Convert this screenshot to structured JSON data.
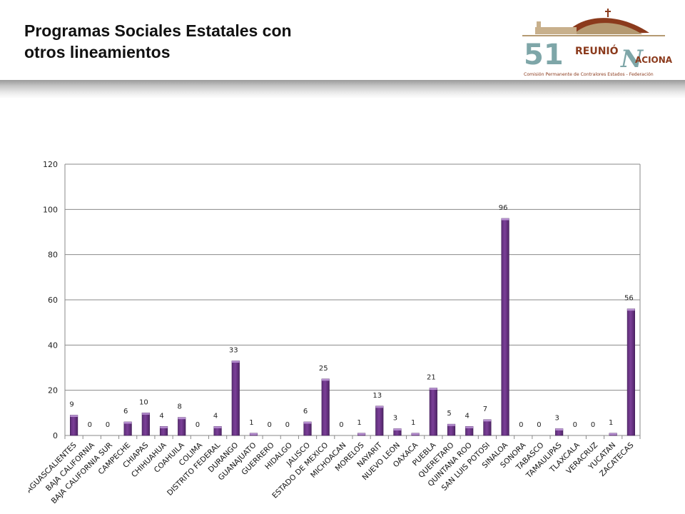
{
  "slide": {
    "title_line1": "Programas Sociales Estatales con",
    "title_line2": "otros lineamientos"
  },
  "logo": {
    "number": "51",
    "word1": "REUNIÓ",
    "word2_initial": "N",
    "word2_rest": "ACIONAL",
    "subtitle": "Comisión Permanente de Contralores Estados - Federación",
    "colors": {
      "teal": "#7ea6a8",
      "brown": "#8b3a1c",
      "sand": "#b59a72"
    }
  },
  "chart_data": {
    "type": "bar",
    "title": "",
    "xlabel": "",
    "ylabel": "",
    "ylim": [
      0,
      120
    ],
    "yticks": [
      0,
      20,
      40,
      60,
      80,
      100,
      120
    ],
    "grid": true,
    "bar_color": "#7b3f98",
    "categories": [
      "AGUASCALIENTES",
      "BAJA CALIFORNIA",
      "BAJA CALIFORNIA SUR",
      "CAMPECHE",
      "CHIAPAS",
      "CHIHUAHUA",
      "COAHUILA",
      "COLIMA",
      "DISTRITO FEDERAL",
      "DURANGO",
      "GUANAJUATO",
      "GUERRERO",
      "HIDALGO",
      "JALISCO",
      "ESTADO DE MEXICO",
      "MICHOACAN",
      "MORELOS",
      "NAYARIT",
      "NUEVO LEON",
      "OAXACA",
      "PUEBLA",
      "QUERETARO",
      "QUINTANA ROO",
      "SAN LUIS POTOSI",
      "SINALOA",
      "SONORA",
      "TABASCO",
      "TAMAULIPAS",
      "TLAXCALA",
      "VERACRUZ",
      "YUCATAN",
      "ZACATECAS"
    ],
    "values": [
      9,
      0,
      0,
      6,
      10,
      4,
      8,
      0,
      4,
      33,
      1,
      0,
      0,
      6,
      25,
      0,
      1,
      13,
      3,
      1,
      21,
      5,
      4,
      7,
      96,
      0,
      0,
      3,
      0,
      0,
      1,
      56
    ]
  }
}
